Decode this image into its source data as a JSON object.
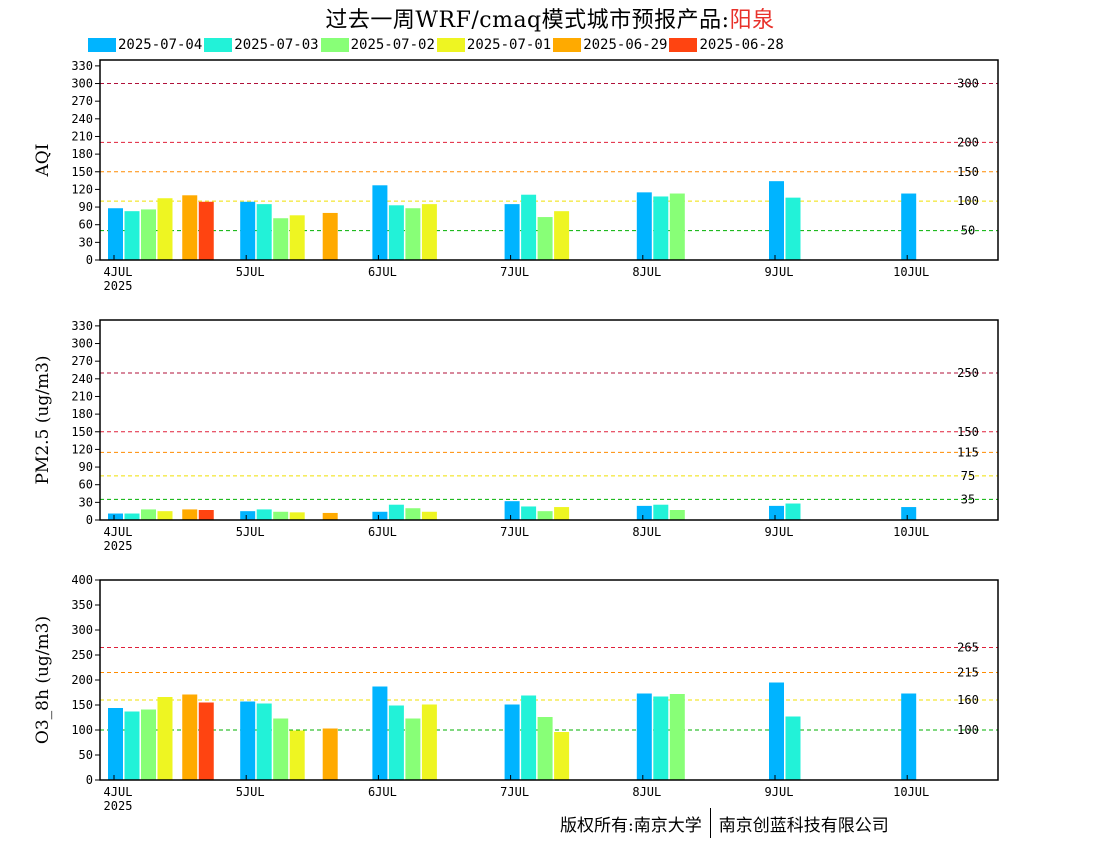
{
  "title": {
    "main": "过去一周WRF/cmaq模式城市预报产品:",
    "city": "阳泉",
    "city_color": "#e8312a"
  },
  "legend": [
    {
      "label": "2025-07-04",
      "color": "#00b4ff"
    },
    {
      "label": "2025-07-03",
      "color": "#22f2d8"
    },
    {
      "label": "2025-07-02",
      "color": "#88ff77"
    },
    {
      "label": "2025-07-01",
      "color": "#eef522"
    },
    {
      "label": "2025-06-29",
      "color": "#ffaa00"
    },
    {
      "label": "2025-06-28",
      "color": "#ff4411"
    }
  ],
  "footer": {
    "left": "版权所有:南京大学",
    "right": "南京创蓝科技有限公司"
  },
  "chart_data": [
    {
      "type": "bar",
      "ylabel": "AQI",
      "ylim": [
        0,
        340
      ],
      "yticks": [
        0,
        30,
        60,
        90,
        120,
        150,
        180,
        210,
        240,
        270,
        300,
        330
      ],
      "x_ticks": [
        "4JUL",
        "5JUL",
        "6JUL",
        "7JUL",
        "8JUL",
        "9JUL",
        "10JUL"
      ],
      "x_year": "2025",
      "thresholds": [
        {
          "value": 300,
          "label": "300",
          "color": "#b0103a"
        },
        {
          "value": 200,
          "label": "200",
          "color": "#e0203a"
        },
        {
          "value": 150,
          "label": "150",
          "color": "#ff8c00"
        },
        {
          "value": 100,
          "label": "100",
          "color": "#f0e000"
        },
        {
          "value": 50,
          "label": "50",
          "color": "#00b000"
        }
      ],
      "groups": [
        {
          "start_day": 0,
          "slots": [
            0,
            1,
            2,
            3
          ],
          "values": [
            88,
            83,
            86,
            105
          ],
          "extra": [
            {
              "slot": 4.5,
              "series": 4,
              "value": 110
            },
            {
              "slot": 5.5,
              "series": 5,
              "value": 99
            }
          ]
        },
        {
          "start_day": 1,
          "slots": [
            0,
            1,
            2,
            3
          ],
          "values": [
            99,
            95,
            71,
            76
          ],
          "extra": [
            {
              "slot": 5,
              "series": 4,
              "value": 80
            }
          ]
        },
        {
          "start_day": 2,
          "slots": [
            0,
            1,
            2,
            3
          ],
          "values": [
            127,
            93,
            88,
            95
          ],
          "extra": []
        },
        {
          "start_day": 3,
          "slots": [
            0,
            1,
            2,
            3
          ],
          "values": [
            95,
            111,
            73,
            83
          ],
          "extra": []
        },
        {
          "start_day": 4,
          "slots": [
            0,
            1,
            2
          ],
          "values": [
            115,
            108,
            113
          ],
          "extra": []
        },
        {
          "start_day": 5,
          "slots": [
            0,
            1
          ],
          "values": [
            134,
            106
          ],
          "extra": []
        },
        {
          "start_day": 6,
          "slots": [
            0
          ],
          "values": [
            113
          ],
          "extra": []
        }
      ]
    },
    {
      "type": "bar",
      "ylabel": "PM2.5 (ug/m3)",
      "ylim": [
        0,
        340
      ],
      "yticks": [
        0,
        30,
        60,
        90,
        120,
        150,
        180,
        210,
        240,
        270,
        300,
        330
      ],
      "x_ticks": [
        "4JUL",
        "5JUL",
        "6JUL",
        "7JUL",
        "8JUL",
        "9JUL",
        "10JUL"
      ],
      "x_year": "2025",
      "thresholds": [
        {
          "value": 250,
          "label": "250",
          "color": "#b0103a"
        },
        {
          "value": 150,
          "label": "150",
          "color": "#e0203a"
        },
        {
          "value": 115,
          "label": "115",
          "color": "#ff8c00"
        },
        {
          "value": 75,
          "label": "75",
          "color": "#f0e000"
        },
        {
          "value": 35,
          "label": "35",
          "color": "#00b000"
        }
      ],
      "groups": [
        {
          "start_day": 0,
          "slots": [
            0,
            1,
            2,
            3
          ],
          "values": [
            11,
            11,
            18,
            15
          ],
          "extra": [
            {
              "slot": 4.5,
              "series": 4,
              "value": 18
            },
            {
              "slot": 5.5,
              "series": 5,
              "value": 17
            }
          ]
        },
        {
          "start_day": 1,
          "slots": [
            0,
            1,
            2,
            3
          ],
          "values": [
            15,
            18,
            14,
            13
          ],
          "extra": [
            {
              "slot": 5,
              "series": 4,
              "value": 12
            }
          ]
        },
        {
          "start_day": 2,
          "slots": [
            0,
            1,
            2,
            3
          ],
          "values": [
            14,
            26,
            20,
            14
          ],
          "extra": []
        },
        {
          "start_day": 3,
          "slots": [
            0,
            1,
            2,
            3
          ],
          "values": [
            32,
            23,
            15,
            22
          ],
          "extra": []
        },
        {
          "start_day": 4,
          "slots": [
            0,
            1,
            2
          ],
          "values": [
            24,
            26,
            17
          ],
          "extra": []
        },
        {
          "start_day": 5,
          "slots": [
            0,
            1
          ],
          "values": [
            24,
            28
          ],
          "extra": []
        },
        {
          "start_day": 6,
          "slots": [
            0
          ],
          "values": [
            22
          ],
          "extra": []
        }
      ]
    },
    {
      "type": "bar",
      "ylabel": "O3_8h (ug/m3)",
      "ylim": [
        0,
        400
      ],
      "yticks": [
        0,
        50,
        100,
        150,
        200,
        250,
        300,
        350,
        400
      ],
      "x_ticks": [
        "4JUL",
        "5JUL",
        "6JUL",
        "7JUL",
        "8JUL",
        "9JUL",
        "10JUL"
      ],
      "x_year": "2025",
      "thresholds": [
        {
          "value": 265,
          "label": "265",
          "color": "#e0203a"
        },
        {
          "value": 215,
          "label": "215",
          "color": "#ff8c00"
        },
        {
          "value": 160,
          "label": "160",
          "color": "#f0e000"
        },
        {
          "value": 100,
          "label": "100",
          "color": "#00b000"
        }
      ],
      "groups": [
        {
          "start_day": 0,
          "slots": [
            0,
            1,
            2,
            3
          ],
          "values": [
            144,
            137,
            141,
            166
          ],
          "extra": [
            {
              "slot": 4.5,
              "series": 4,
              "value": 171
            },
            {
              "slot": 5.5,
              "series": 5,
              "value": 155
            }
          ]
        },
        {
          "start_day": 1,
          "slots": [
            0,
            1,
            2,
            3
          ],
          "values": [
            157,
            153,
            123,
            99
          ],
          "extra": [
            {
              "slot": 5,
              "series": 4,
              "value": 103
            }
          ]
        },
        {
          "start_day": 2,
          "slots": [
            0,
            1,
            2,
            3
          ],
          "values": [
            187,
            149,
            123,
            151
          ],
          "extra": []
        },
        {
          "start_day": 3,
          "slots": [
            0,
            1,
            2,
            3
          ],
          "values": [
            151,
            169,
            126,
            96
          ],
          "extra": []
        },
        {
          "start_day": 4,
          "slots": [
            0,
            1,
            2
          ],
          "values": [
            173,
            167,
            172
          ],
          "extra": []
        },
        {
          "start_day": 5,
          "slots": [
            0,
            1
          ],
          "values": [
            195,
            127
          ],
          "extra": []
        },
        {
          "start_day": 6,
          "slots": [
            0
          ],
          "values": [
            173
          ],
          "extra": []
        }
      ]
    }
  ]
}
